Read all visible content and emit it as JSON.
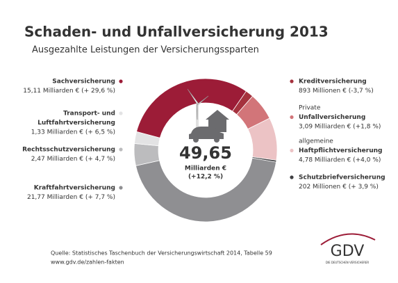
{
  "chart_data": {
    "type": "donut",
    "title": "Schaden- und Unfallversicherung 2013",
    "subtitle": "Ausgezahlte Leistungen der Versicherungssparten",
    "categories": [
      [
        "Sachversicherung"
      ],
      [
        "Kreditversicherung"
      ],
      [
        "Unfallversicherung"
      ],
      [
        "Haftpflichtversicherung"
      ],
      [
        "Schutzbriefversicherung"
      ],
      [
        "Kraftfahrtversicherung"
      ],
      [
        "Rechtsschutzversicherung"
      ],
      [
        "Transport- und",
        "Luftfahrtversicherung"
      ]
    ],
    "category_prefixes": [
      null,
      null,
      "Private",
      "allgemeine",
      null,
      null,
      null,
      null
    ],
    "values": [
      15.11,
      0.893,
      3.09,
      4.78,
      0.202,
      21.77,
      2.47,
      1.33
    ],
    "value_labels": [
      "15,11 Milliarden € (+ 29,6 %)",
      "893 Millionen € (-3,7 %)",
      "3,09 Milliarden € (+1,8 %)",
      "4,78 Milliarden € (+4,0 %)",
      "202 Millionen € (+ 3,9 %)",
      "21,77 Milliarden € (+ 7,7 %)",
      "2,47 Milliarden € (+ 4,7 %)",
      "1,33 Milliarden € (+ 6,5 %)"
    ],
    "colors": [
      "#9c1c37",
      "#a5323e",
      "#d27579",
      "#ecc3c5",
      "#3f3f42",
      "#8f8f92",
      "#bcbcbe",
      "#e3e3e4"
    ],
    "total": {
      "value": 49.65,
      "label": "49,65",
      "unit": "Milliarden €",
      "change": "(+12,2 %)"
    },
    "source": [
      "Quelle: Statistisches Taschenbuch der Versicherungswirtschaft 2014, Tabelle 59",
      "www.gdv.de/zahlen-fakten"
    ]
  },
  "logo": {
    "name": "GDV",
    "tagline": "DIE DEUTSCHEN VERSICHERER"
  }
}
